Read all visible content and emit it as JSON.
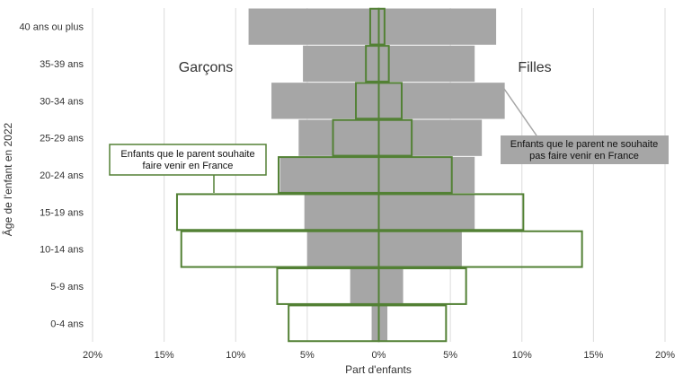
{
  "chart_data": {
    "type": "bar",
    "orientation": "horizontal",
    "layout": "population-pyramid",
    "categories": [
      "0-4 ans",
      "5-9 ans",
      "10-14 ans",
      "15-19 ans",
      "20-24 ans",
      "25-29 ans",
      "30-34 ans",
      "35-39 ans",
      "40 ans ou plus"
    ],
    "series": [
      {
        "name": "Enfants que le parent ne souhaite pas faire venir en France",
        "style": "filled",
        "color": "#a6a6a6",
        "boys": [
          0.5,
          2.0,
          5.0,
          5.2,
          6.9,
          5.6,
          7.5,
          5.3,
          9.1
        ],
        "girls": [
          0.6,
          1.7,
          5.8,
          6.7,
          6.7,
          7.2,
          8.8,
          6.7,
          8.2
        ]
      },
      {
        "name": "Enfants que le parent souhaite faire venir en France",
        "style": "outline",
        "color": "#538135",
        "boys": [
          6.3,
          7.1,
          13.8,
          14.1,
          7.0,
          3.2,
          1.6,
          0.9,
          0.6
        ],
        "girls": [
          4.7,
          6.1,
          14.2,
          10.1,
          5.1,
          2.3,
          1.6,
          0.7,
          0.4
        ]
      }
    ],
    "left_group_label": "Garçons",
    "right_group_label": "Filles",
    "callout_outline_text": "Enfants que le parent souhaite faire venir en France",
    "callout_filled_text": "Enfants que le parent ne souhaite pas faire venir en France",
    "xlabel": "Part d'enfants",
    "ylabel": "Âge de l'enfant en 2022",
    "xlim": [
      -20,
      20
    ],
    "x_ticks": [
      -20,
      -15,
      -10,
      -5,
      0,
      5,
      10,
      15,
      20
    ],
    "x_tick_labels": [
      "20%",
      "15%",
      "10%",
      "5%",
      "0%",
      "5%",
      "10%",
      "15%",
      "20%"
    ],
    "grid": "vertical"
  }
}
